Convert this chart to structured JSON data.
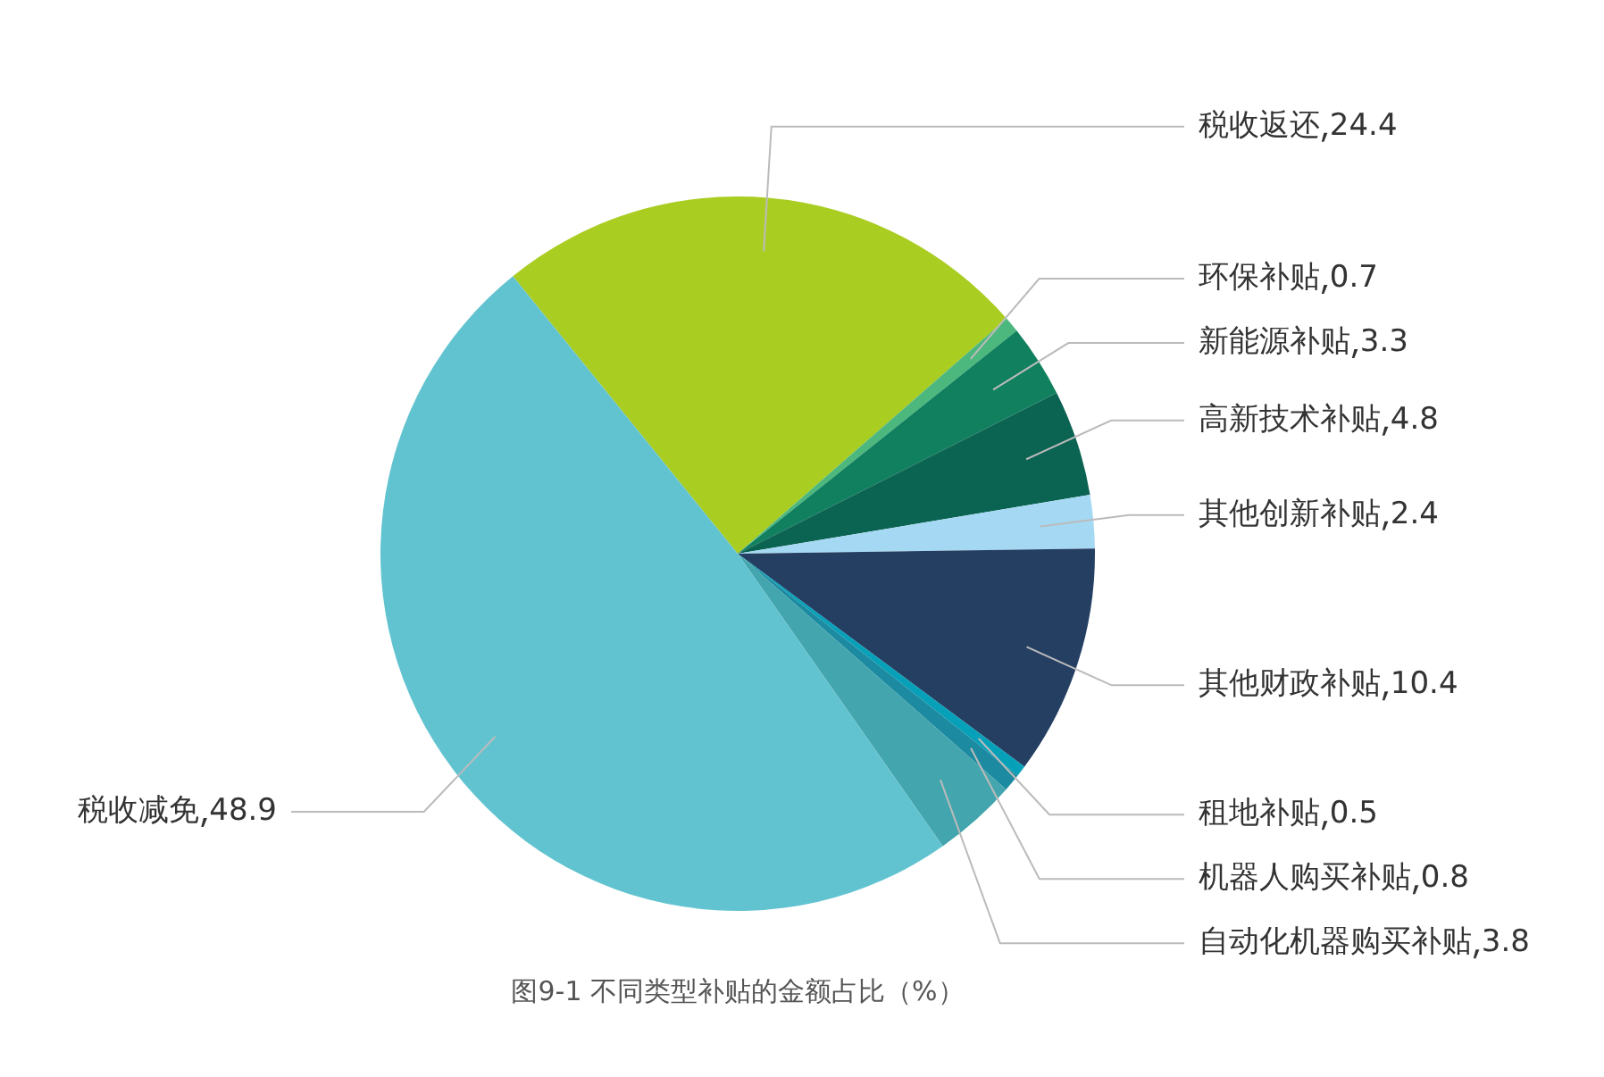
{
  "chart_data": {
    "type": "pie",
    "title": "图9-1 不同类型补贴的金额占比（%）",
    "categories": [
      "税收返还",
      "环保补贴",
      "新能源补贴",
      "高新技术补贴",
      "其他创新补贴",
      "其他财政补贴",
      "租地补贴",
      "机器人购买补贴",
      "自动化机器购买补贴",
      "税收减免"
    ],
    "values": [
      24.4,
      0.7,
      3.3,
      4.8,
      2.4,
      10.4,
      0.5,
      0.8,
      3.8,
      48.9
    ],
    "colors": [
      "#aacd22",
      "#4cb87e",
      "#11805e",
      "#0b6352",
      "#a5d9f3",
      "#253f63",
      "#06a0b8",
      "#1c8aa0",
      "#43a5ad",
      "#62c3d0"
    ],
    "data_labels": true,
    "legend": false
  }
}
